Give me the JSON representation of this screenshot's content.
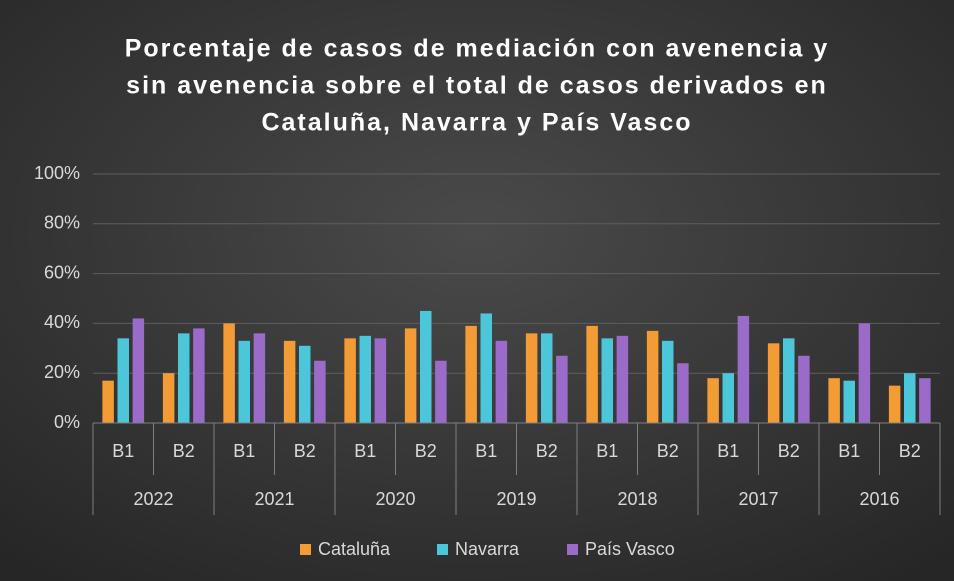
{
  "chart_data": {
    "type": "bar",
    "title": [
      "Porcentaje de casos de mediación con avenencia y",
      "sin avenencia sobre el total de casos derivados en",
      "Cataluña, Navarra y País Vasco"
    ],
    "categories": [
      "B1",
      "B2",
      "B1",
      "B2",
      "B1",
      "B2",
      "B1",
      "B2",
      "B1",
      "B2",
      "B1",
      "B2",
      "B1",
      "B2"
    ],
    "groups": [
      "2022",
      "2021",
      "2020",
      "2019",
      "2018",
      "2017",
      "2016"
    ],
    "series": [
      {
        "name": "Cataluña",
        "color": "#f39c35",
        "values": [
          17,
          20,
          40,
          33,
          34,
          38,
          39,
          36,
          39,
          37,
          18,
          32,
          18,
          15
        ]
      },
      {
        "name": "Navarra",
        "color": "#4cc6d9",
        "values": [
          34,
          36,
          33,
          31,
          35,
          45,
          44,
          36,
          34,
          33,
          20,
          34,
          17,
          20
        ]
      },
      {
        "name": "País Vasco",
        "color": "#9a6bc9",
        "values": [
          42,
          38,
          36,
          25,
          34,
          25,
          33,
          27,
          35,
          24,
          43,
          27,
          40,
          18
        ]
      }
    ],
    "ylim": [
      0,
      100
    ],
    "yticks": [
      {
        "value": 0,
        "label": "0%"
      },
      {
        "value": 20,
        "label": "20%"
      },
      {
        "value": 40,
        "label": "40%"
      },
      {
        "value": 60,
        "label": "60%"
      },
      {
        "value": 80,
        "label": "80%"
      },
      {
        "value": 100,
        "label": "100%"
      }
    ],
    "grid": true,
    "legend": "bottom"
  }
}
